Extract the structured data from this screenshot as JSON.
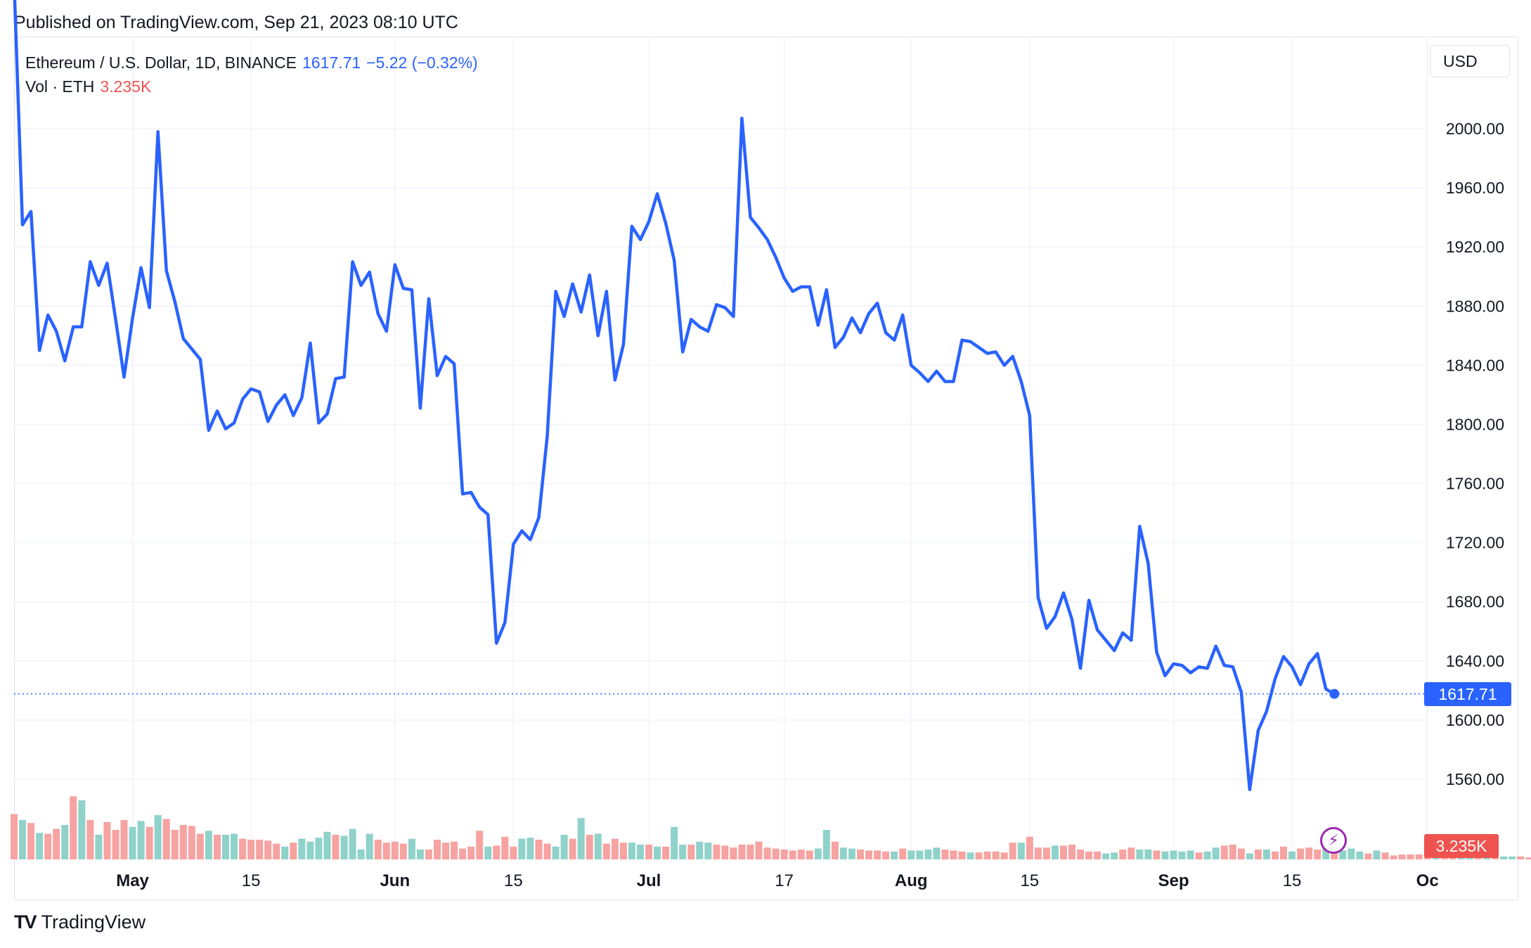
{
  "published": "Published on TradingView.com, Sep 21, 2023 08:10 UTC",
  "legend": {
    "symbol": "Ethereum / U.S. Dollar, 1D, BINANCE",
    "last": "1617.71",
    "change": "−5.22 (−0.32%)",
    "vol_label": "Vol · ETH",
    "vol_value": "3.235K"
  },
  "currency": "USD",
  "price_tag": "1617.71",
  "vol_tag": "3.235K",
  "footer": {
    "brand": "TradingView"
  },
  "colors": {
    "line": "#2962ff",
    "vol_up": "#8fd2ca",
    "vol_down": "#f6a3a1",
    "grid": "#f0f3fa",
    "down": "#ef5350"
  },
  "icons": {
    "flash": "lightning-icon",
    "logo": "tradingview-logo-icon"
  },
  "chart_data": {
    "type": "line",
    "y_axis": {
      "side": "right",
      "ticks": [
        "2000.00",
        "1960.00",
        "1920.00",
        "1880.00",
        "1840.00",
        "1800.00",
        "1760.00",
        "1720.00",
        "1680.00",
        "1640.00",
        "1600.00",
        "1560.00"
      ],
      "range": [
        1535,
        2080
      ]
    },
    "x_axis": {
      "ticks": [
        {
          "label": "May",
          "date": "2023-05-01",
          "bold": true
        },
        {
          "label": "15",
          "date": "2023-05-15"
        },
        {
          "label": "Jun",
          "date": "2023-06-01",
          "bold": true
        },
        {
          "label": "15",
          "date": "2023-06-15"
        },
        {
          "label": "Jul",
          "date": "2023-07-01",
          "bold": true
        },
        {
          "label": "17",
          "date": "2023-07-17"
        },
        {
          "label": "Aug",
          "date": "2023-08-01",
          "bold": true
        },
        {
          "label": "15",
          "date": "2023-08-15"
        },
        {
          "label": "Sep",
          "date": "2023-09-01",
          "bold": true
        },
        {
          "label": "15",
          "date": "2023-09-15"
        },
        {
          "label": "Oc",
          "date": "2023-10-01",
          "bold": true
        }
      ],
      "range": [
        "2023-04-17",
        "2023-10-01"
      ]
    },
    "series": [
      {
        "type": "line",
        "start_date": "2023-04-17",
        "values": [
          2100,
          1935,
          1944,
          1850,
          1874,
          1863,
          1843,
          1866,
          1866,
          1910,
          1894,
          1909,
          1871,
          1832,
          1872,
          1906,
          1879,
          1998,
          1904,
          1883,
          1858,
          1851,
          1844,
          1796,
          1809,
          1797,
          1801,
          1817,
          1824,
          1822,
          1802,
          1813,
          1820,
          1806,
          1818,
          1855,
          1801,
          1807,
          1831,
          1832,
          1910,
          1894,
          1903,
          1875,
          1863,
          1908,
          1892,
          1891,
          1811,
          1885,
          1833,
          1846,
          1841,
          1753,
          1754,
          1744,
          1739,
          1652,
          1666,
          1719,
          1728,
          1722,
          1737,
          1792,
          1890,
          1873,
          1895,
          1876,
          1901,
          1860,
          1890,
          1830,
          1854,
          1934,
          1925,
          1937,
          1956,
          1936,
          1911,
          1849,
          1871,
          1866,
          1863,
          1881,
          1879,
          1873,
          2007,
          1940,
          1933,
          1925,
          1913,
          1899,
          1890,
          1893,
          1893,
          1867,
          1891,
          1852,
          1859,
          1872,
          1862,
          1875,
          1882,
          1862,
          1857,
          1874,
          1840,
          1835,
          1829,
          1836,
          1829,
          1829,
          1857,
          1856,
          1852,
          1848,
          1849,
          1840,
          1846,
          1829,
          1806,
          1683,
          1662,
          1670,
          1686,
          1668,
          1635,
          1681,
          1661,
          1654,
          1647,
          1659,
          1654,
          1731,
          1706,
          1646,
          1630,
          1638,
          1637,
          1632,
          1636,
          1635,
          1650,
          1637,
          1636,
          1619,
          1553,
          1593,
          1606,
          1628,
          1643,
          1636,
          1624,
          1638,
          1645,
          1621,
          1617.71
        ]
      }
    ],
    "volume": {
      "scale_max_k": 1060,
      "bars": [
        {
          "v": 230,
          "up": false
        },
        {
          "v": 200,
          "up": true
        },
        {
          "v": 185,
          "up": false
        },
        {
          "v": 135,
          "up": true
        },
        {
          "v": 130,
          "up": false
        },
        {
          "v": 155,
          "up": false
        },
        {
          "v": 175,
          "up": true
        },
        {
          "v": 320,
          "up": false
        },
        {
          "v": 300,
          "up": true
        },
        {
          "v": 200,
          "up": false
        },
        {
          "v": 125,
          "up": true
        },
        {
          "v": 190,
          "up": false
        },
        {
          "v": 150,
          "up": false
        },
        {
          "v": 200,
          "up": false
        },
        {
          "v": 165,
          "up": true
        },
        {
          "v": 195,
          "up": true
        },
        {
          "v": 165,
          "up": false
        },
        {
          "v": 225,
          "up": true
        },
        {
          "v": 205,
          "up": false
        },
        {
          "v": 150,
          "up": false
        },
        {
          "v": 175,
          "up": false
        },
        {
          "v": 170,
          "up": false
        },
        {
          "v": 130,
          "up": false
        },
        {
          "v": 145,
          "up": true
        },
        {
          "v": 125,
          "up": false
        },
        {
          "v": 125,
          "up": true
        },
        {
          "v": 130,
          "up": true
        },
        {
          "v": 105,
          "up": false
        },
        {
          "v": 100,
          "up": false
        },
        {
          "v": 100,
          "up": false
        },
        {
          "v": 95,
          "up": false
        },
        {
          "v": 80,
          "up": false
        },
        {
          "v": 65,
          "up": true
        },
        {
          "v": 85,
          "up": false
        },
        {
          "v": 105,
          "up": true
        },
        {
          "v": 90,
          "up": true
        },
        {
          "v": 110,
          "up": true
        },
        {
          "v": 140,
          "up": true
        },
        {
          "v": 125,
          "up": false
        },
        {
          "v": 120,
          "up": true
        },
        {
          "v": 155,
          "up": true
        },
        {
          "v": 50,
          "up": true
        },
        {
          "v": 130,
          "up": true
        },
        {
          "v": 100,
          "up": false
        },
        {
          "v": 85,
          "up": false
        },
        {
          "v": 90,
          "up": false
        },
        {
          "v": 80,
          "up": false
        },
        {
          "v": 105,
          "up": true
        },
        {
          "v": 50,
          "up": true
        },
        {
          "v": 50,
          "up": false
        },
        {
          "v": 100,
          "up": false
        },
        {
          "v": 85,
          "up": false
        },
        {
          "v": 90,
          "up": false
        },
        {
          "v": 55,
          "up": false
        },
        {
          "v": 65,
          "up": false
        },
        {
          "v": 145,
          "up": false
        },
        {
          "v": 65,
          "up": true
        },
        {
          "v": 70,
          "up": false
        },
        {
          "v": 115,
          "up": false
        },
        {
          "v": 65,
          "up": false
        },
        {
          "v": 105,
          "up": true
        },
        {
          "v": 110,
          "up": true
        },
        {
          "v": 100,
          "up": false
        },
        {
          "v": 80,
          "up": false
        },
        {
          "v": 65,
          "up": true
        },
        {
          "v": 125,
          "up": true
        },
        {
          "v": 105,
          "up": false
        },
        {
          "v": 210,
          "up": true
        },
        {
          "v": 125,
          "up": false
        },
        {
          "v": 130,
          "up": true
        },
        {
          "v": 80,
          "up": false
        },
        {
          "v": 105,
          "up": false
        },
        {
          "v": 85,
          "up": false
        },
        {
          "v": 85,
          "up": true
        },
        {
          "v": 75,
          "up": true
        },
        {
          "v": 75,
          "up": false
        },
        {
          "v": 65,
          "up": true
        },
        {
          "v": 65,
          "up": false
        },
        {
          "v": 165,
          "up": true
        },
        {
          "v": 75,
          "up": true
        },
        {
          "v": 75,
          "up": false
        },
        {
          "v": 90,
          "up": true
        },
        {
          "v": 85,
          "up": true
        },
        {
          "v": 75,
          "up": false
        },
        {
          "v": 70,
          "up": false
        },
        {
          "v": 60,
          "up": false
        },
        {
          "v": 75,
          "up": false
        },
        {
          "v": 75,
          "up": false
        },
        {
          "v": 90,
          "up": false
        },
        {
          "v": 60,
          "up": false
        },
        {
          "v": 55,
          "up": false
        },
        {
          "v": 50,
          "up": false
        },
        {
          "v": 45,
          "up": false
        },
        {
          "v": 50,
          "up": false
        },
        {
          "v": 45,
          "up": false
        },
        {
          "v": 55,
          "up": true
        },
        {
          "v": 150,
          "up": true
        },
        {
          "v": 90,
          "up": false
        },
        {
          "v": 60,
          "up": true
        },
        {
          "v": 55,
          "up": true
        },
        {
          "v": 50,
          "up": false
        },
        {
          "v": 45,
          "up": false
        },
        {
          "v": 45,
          "up": false
        },
        {
          "v": 40,
          "up": false
        },
        {
          "v": 40,
          "up": true
        },
        {
          "v": 55,
          "up": false
        },
        {
          "v": 45,
          "up": true
        },
        {
          "v": 45,
          "up": true
        },
        {
          "v": 50,
          "up": true
        },
        {
          "v": 60,
          "up": true
        },
        {
          "v": 50,
          "up": false
        },
        {
          "v": 45,
          "up": false
        },
        {
          "v": 40,
          "up": false
        },
        {
          "v": 35,
          "up": true
        },
        {
          "v": 35,
          "up": false
        },
        {
          "v": 40,
          "up": false
        },
        {
          "v": 40,
          "up": false
        },
        {
          "v": 35,
          "up": false
        },
        {
          "v": 85,
          "up": false
        },
        {
          "v": 85,
          "up": true
        },
        {
          "v": 115,
          "up": false
        },
        {
          "v": 60,
          "up": false
        },
        {
          "v": 60,
          "up": false
        },
        {
          "v": 70,
          "up": true
        },
        {
          "v": 70,
          "up": false
        },
        {
          "v": 75,
          "up": false
        },
        {
          "v": 50,
          "up": false
        },
        {
          "v": 40,
          "up": false
        },
        {
          "v": 40,
          "up": false
        },
        {
          "v": 30,
          "up": true
        },
        {
          "v": 35,
          "up": true
        },
        {
          "v": 50,
          "up": false
        },
        {
          "v": 60,
          "up": false
        },
        {
          "v": 50,
          "up": true
        },
        {
          "v": 50,
          "up": true
        },
        {
          "v": 45,
          "up": false
        },
        {
          "v": 40,
          "up": true
        },
        {
          "v": 45,
          "up": true
        },
        {
          "v": 40,
          "up": true
        },
        {
          "v": 45,
          "up": true
        },
        {
          "v": 35,
          "up": false
        },
        {
          "v": 40,
          "up": true
        },
        {
          "v": 60,
          "up": true
        },
        {
          "v": 70,
          "up": false
        },
        {
          "v": 75,
          "up": false
        },
        {
          "v": 55,
          "up": false
        },
        {
          "v": 30,
          "up": true
        },
        {
          "v": 50,
          "up": false
        },
        {
          "v": 50,
          "up": true
        },
        {
          "v": 40,
          "up": false
        },
        {
          "v": 65,
          "up": false
        },
        {
          "v": 40,
          "up": true
        },
        {
          "v": 55,
          "up": false
        },
        {
          "v": 60,
          "up": false
        },
        {
          "v": 50,
          "up": false
        },
        {
          "v": 60,
          "up": true
        },
        {
          "v": 60,
          "up": false
        },
        {
          "v": 45,
          "up": true
        },
        {
          "v": 55,
          "up": true
        },
        {
          "v": 40,
          "up": true
        },
        {
          "v": 30,
          "up": false
        },
        {
          "v": 45,
          "up": true
        },
        {
          "v": 35,
          "up": false
        },
        {
          "v": 20,
          "up": false
        },
        {
          "v": 25,
          "up": false
        },
        {
          "v": 25,
          "up": false
        },
        {
          "v": 25,
          "up": false
        },
        {
          "v": 25,
          "up": false
        },
        {
          "v": 20,
          "up": true
        },
        {
          "v": 20,
          "up": false
        },
        {
          "v": 20,
          "up": false
        },
        {
          "v": 20,
          "up": true
        },
        {
          "v": 20,
          "up": true
        },
        {
          "v": 20,
          "up": false
        },
        {
          "v": 20,
          "up": true
        },
        {
          "v": 15,
          "up": false
        },
        {
          "v": 15,
          "up": true
        },
        {
          "v": 15,
          "up": true
        },
        {
          "v": 15,
          "up": false
        },
        {
          "v": 10,
          "up": false
        }
      ]
    }
  }
}
